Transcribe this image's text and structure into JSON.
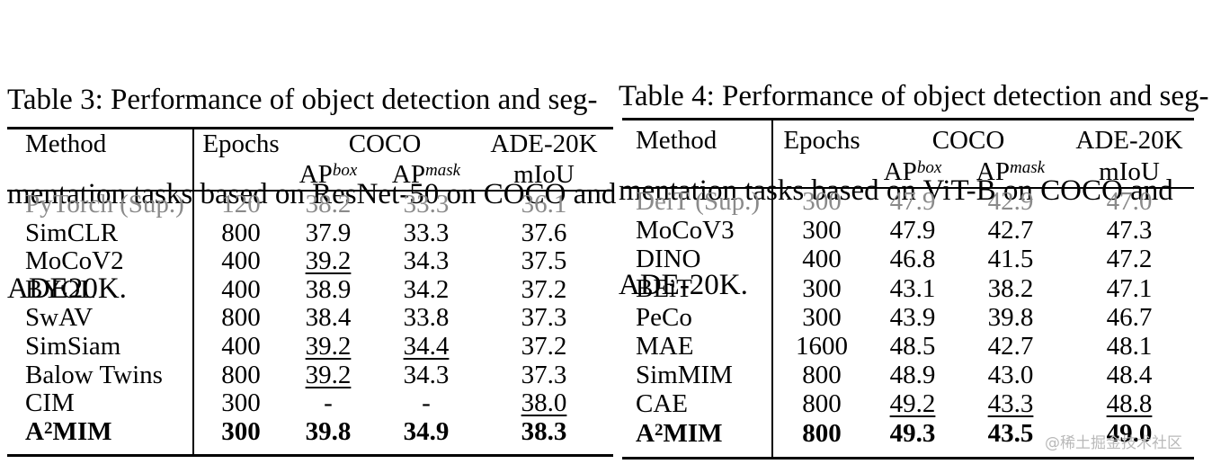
{
  "table3": {
    "caption_lines": [
      "Table 3: Performance of object detection and seg-",
      "mentation tasks based on ResNet-50 on COCO and",
      "ADE20K."
    ],
    "headers": {
      "method": "Method",
      "epochs": "Epochs",
      "coco": "COCO",
      "ade": "ADE-20K",
      "ap": "AP",
      "box": "box",
      "mask": "mask",
      "miou": "mIoU"
    },
    "rows": [
      {
        "method": "PyTorch (Sup.)",
        "epochs": "120",
        "box": "38.2",
        "mask": "33.3",
        "miou": "36.1",
        "style": "gray"
      },
      {
        "method": "SimCLR",
        "epochs": "800",
        "box": "37.9",
        "mask": "33.3",
        "miou": "37.6"
      },
      {
        "method": "MoCoV2",
        "epochs": "400",
        "box": "39.2",
        "mask": "34.3",
        "miou": "37.5",
        "ul": [
          "box"
        ]
      },
      {
        "method": "BYOL",
        "epochs": "400",
        "box": "38.9",
        "mask": "34.2",
        "miou": "37.2"
      },
      {
        "method": "SwAV",
        "epochs": "800",
        "box": "38.4",
        "mask": "33.8",
        "miou": "37.3"
      },
      {
        "method": "SimSiam",
        "epochs": "400",
        "box": "39.2",
        "mask": "34.4",
        "miou": "37.2",
        "ul": [
          "box",
          "mask"
        ]
      },
      {
        "method": "Balow Twins",
        "epochs": "800",
        "box": "39.2",
        "mask": "34.3",
        "miou": "37.3",
        "ul": [
          "box"
        ]
      },
      {
        "method": "CIM",
        "epochs": "300",
        "box": "-",
        "mask": "-",
        "miou": "38.0",
        "ul": [
          "miou"
        ]
      },
      {
        "method": "A",
        "sup": "2",
        "method_rest": "MIM",
        "epochs": "300",
        "box": "39.8",
        "mask": "34.9",
        "miou": "38.3",
        "style": "bold"
      }
    ]
  },
  "table4": {
    "caption_lines": [
      "Table 4: Performance of object detection and seg-",
      "mentation tasks based on ViT-B on COCO and",
      "ADE-20K."
    ],
    "headers": {
      "method": "Method",
      "epochs": "Epochs",
      "coco": "COCO",
      "ade": "ADE-20K",
      "ap": "AP",
      "box": "box",
      "mask": "mask",
      "miou": "mIoU"
    },
    "rows": [
      {
        "method": "DeiT (Sup.)",
        "epochs": "300",
        "box": "47.9",
        "mask": "42.9",
        "miou": "47.0",
        "style": "gray"
      },
      {
        "method": "MoCoV3",
        "epochs": "300",
        "box": "47.9",
        "mask": "42.7",
        "miou": "47.3"
      },
      {
        "method": "DINO",
        "epochs": "400",
        "box": "46.8",
        "mask": "41.5",
        "miou": "47.2"
      },
      {
        "method": "BEiT",
        "epochs": "300",
        "box": "43.1",
        "mask": "38.2",
        "miou": "47.1"
      },
      {
        "method": "PeCo",
        "epochs": "300",
        "box": "43.9",
        "mask": "39.8",
        "miou": "46.7"
      },
      {
        "method": "MAE",
        "epochs": "1600",
        "box": "48.5",
        "mask": "42.7",
        "miou": "48.1"
      },
      {
        "method": "SimMIM",
        "epochs": "800",
        "box": "48.9",
        "mask": "43.0",
        "miou": "48.4"
      },
      {
        "method": "CAE",
        "epochs": "800",
        "box": "49.2",
        "mask": "43.3",
        "miou": "48.8",
        "ul": [
          "box",
          "mask",
          "miou"
        ]
      },
      {
        "method": "A",
        "sup": "2",
        "method_rest": "MIM",
        "epochs": "800",
        "box": "49.3",
        "mask": "43.5",
        "miou": "49.0",
        "style": "bold"
      }
    ]
  },
  "watermark": "@稀土掘金技术社区"
}
